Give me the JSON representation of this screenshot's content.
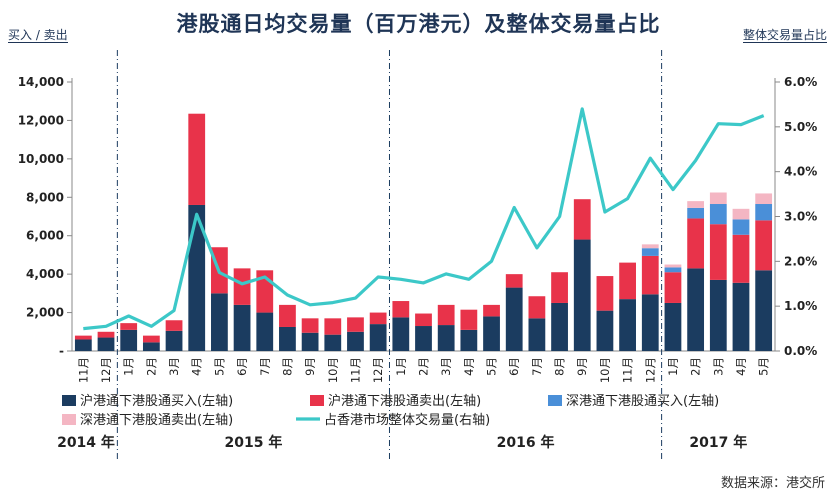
{
  "page": {
    "title": "港股通日均交易量（百万港元）及整体交易量占比",
    "left_axis_note": "买入 / 卖出",
    "right_axis_note": "整体交易量占比",
    "source": "数据来源：港交所"
  },
  "chart_data": {
    "type": "bar",
    "stacked": true,
    "categories": [
      "11月",
      "12月",
      "1月",
      "2月",
      "3月",
      "4月",
      "5月",
      "6月",
      "7月",
      "8月",
      "9月",
      "10月",
      "11月",
      "12月",
      "1月",
      "2月",
      "3月",
      "4月",
      "5月",
      "6月",
      "7月",
      "8月",
      "9月",
      "10月",
      "11月",
      "12月",
      "1月",
      "2月",
      "3月",
      "4月",
      "5月"
    ],
    "year_groups": [
      {
        "label": "2014 年",
        "from": 0,
        "to": 1
      },
      {
        "label": "2015 年",
        "from": 2,
        "to": 13
      },
      {
        "label": "2016 年",
        "from": 14,
        "to": 25
      },
      {
        "label": "2017 年",
        "from": 26,
        "to": 30
      }
    ],
    "series": [
      {
        "name": "沪港通下港股通买入(左轴)",
        "axis": "left",
        "kind": "bar",
        "color": "#1b3c60",
        "values": [
          600,
          700,
          1100,
          450,
          1050,
          7600,
          3000,
          2400,
          2000,
          1250,
          950,
          850,
          1000,
          1400,
          1750,
          1300,
          1350,
          1100,
          1800,
          3300,
          1700,
          2500,
          5800,
          2100,
          2700,
          2950,
          2500,
          4300,
          3700,
          3550,
          4200
        ]
      },
      {
        "name": "沪港通下港股通卖出(左轴)",
        "axis": "left",
        "kind": "bar",
        "color": "#e8334a",
        "values": [
          200,
          300,
          350,
          350,
          550,
          4750,
          2400,
          1900,
          2200,
          1150,
          750,
          850,
          750,
          600,
          850,
          650,
          1050,
          1050,
          600,
          700,
          1150,
          1600,
          2100,
          1800,
          1900,
          2000,
          1600,
          2600,
          2900,
          2500,
          2600
        ]
      },
      {
        "name": "深港通下港股通买入(左轴)",
        "axis": "left",
        "kind": "bar",
        "color": "#4a8fd8",
        "values": [
          0,
          0,
          0,
          0,
          0,
          0,
          0,
          0,
          0,
          0,
          0,
          0,
          0,
          0,
          0,
          0,
          0,
          0,
          0,
          0,
          0,
          0,
          0,
          0,
          0,
          400,
          250,
          550,
          1050,
          800,
          850
        ]
      },
      {
        "name": "深港通下港股通卖出(左轴)",
        "axis": "left",
        "kind": "bar",
        "color": "#f4b6c3",
        "values": [
          0,
          0,
          0,
          0,
          0,
          0,
          0,
          0,
          0,
          0,
          0,
          0,
          0,
          0,
          0,
          0,
          0,
          0,
          0,
          0,
          0,
          0,
          0,
          0,
          0,
          200,
          150,
          350,
          600,
          550,
          550
        ]
      },
      {
        "name": "占香港市场整体交易量(右轴)",
        "axis": "right",
        "kind": "line",
        "color": "#3cc8c8",
        "values": [
          0.5,
          0.55,
          0.78,
          0.55,
          0.9,
          3.05,
          1.75,
          1.5,
          1.65,
          1.25,
          1.03,
          1.08,
          1.18,
          1.65,
          1.6,
          1.52,
          1.72,
          1.6,
          2.0,
          3.2,
          2.3,
          3.0,
          5.4,
          3.1,
          3.4,
          4.3,
          3.6,
          4.25,
          5.07,
          5.05,
          5.25
        ]
      }
    ],
    "y_left": {
      "min": 0,
      "max": 14000,
      "ticks": [
        "-",
        "2,000",
        "4,000",
        "6,000",
        "8,000",
        "10,000",
        "12,000",
        "14,000"
      ]
    },
    "y_right": {
      "min": 0,
      "max": 6,
      "ticks": [
        "0.0%",
        "1.0%",
        "2.0%",
        "3.0%",
        "4.0%",
        "5.0%",
        "6.0%"
      ]
    },
    "legend": {
      "placement": "bottom"
    }
  }
}
